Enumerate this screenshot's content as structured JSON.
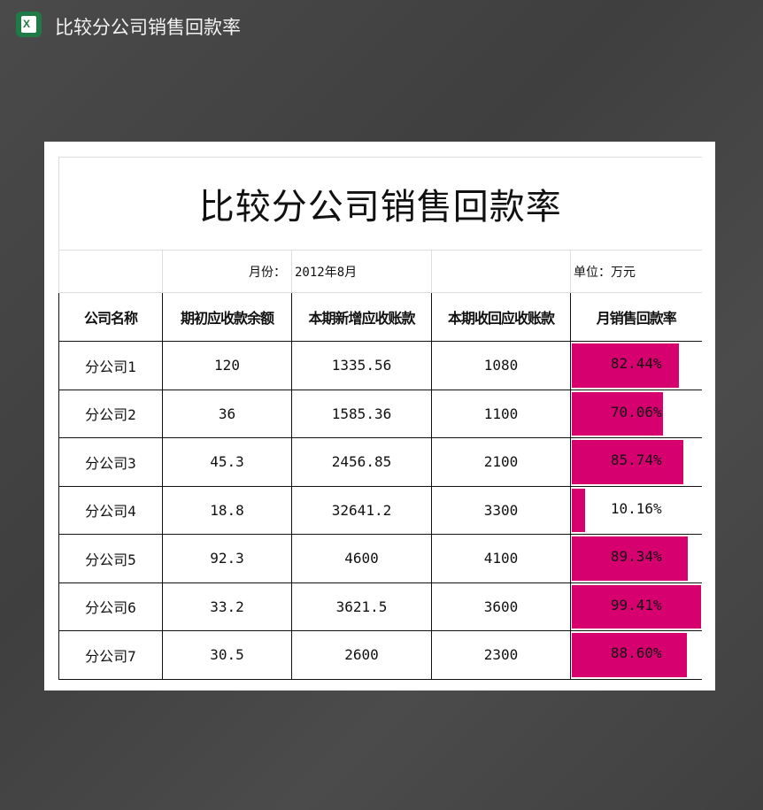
{
  "window": {
    "title": "比较分公司销售回款率",
    "icon": "excel-icon"
  },
  "sheet": {
    "title": "比较分公司销售回款率",
    "month_label": "月份：",
    "month_value": "2012年8月",
    "unit_label": "单位：万元",
    "headers": [
      "公司名称",
      "期初应收款余额",
      "本期新增应收账款",
      "本期收回应收账款",
      "月销售回款率"
    ],
    "bar_color": "#d6006f",
    "rows": [
      {
        "name": "分公司1",
        "opening": "120",
        "new": "1335.56",
        "collected": "1080",
        "rate": "82.44%",
        "rate_value": 82.44
      },
      {
        "name": "分公司2",
        "opening": "36",
        "new": "1585.36",
        "collected": "1100",
        "rate": "70.06%",
        "rate_value": 70.06
      },
      {
        "name": "分公司3",
        "opening": "45.3",
        "new": "2456.85",
        "collected": "2100",
        "rate": "85.74%",
        "rate_value": 85.74
      },
      {
        "name": "分公司4",
        "opening": "18.8",
        "new": "32641.2",
        "collected": "3300",
        "rate": "10.16%",
        "rate_value": 10.16
      },
      {
        "name": "分公司5",
        "opening": "92.3",
        "new": "4600",
        "collected": "4100",
        "rate": "89.34%",
        "rate_value": 89.34
      },
      {
        "name": "分公司6",
        "opening": "33.2",
        "new": "3621.5",
        "collected": "3600",
        "rate": "99.41%",
        "rate_value": 99.41
      },
      {
        "name": "分公司7",
        "opening": "30.5",
        "new": "2600",
        "collected": "2300",
        "rate": "88.60%",
        "rate_value": 88.6
      }
    ]
  }
}
